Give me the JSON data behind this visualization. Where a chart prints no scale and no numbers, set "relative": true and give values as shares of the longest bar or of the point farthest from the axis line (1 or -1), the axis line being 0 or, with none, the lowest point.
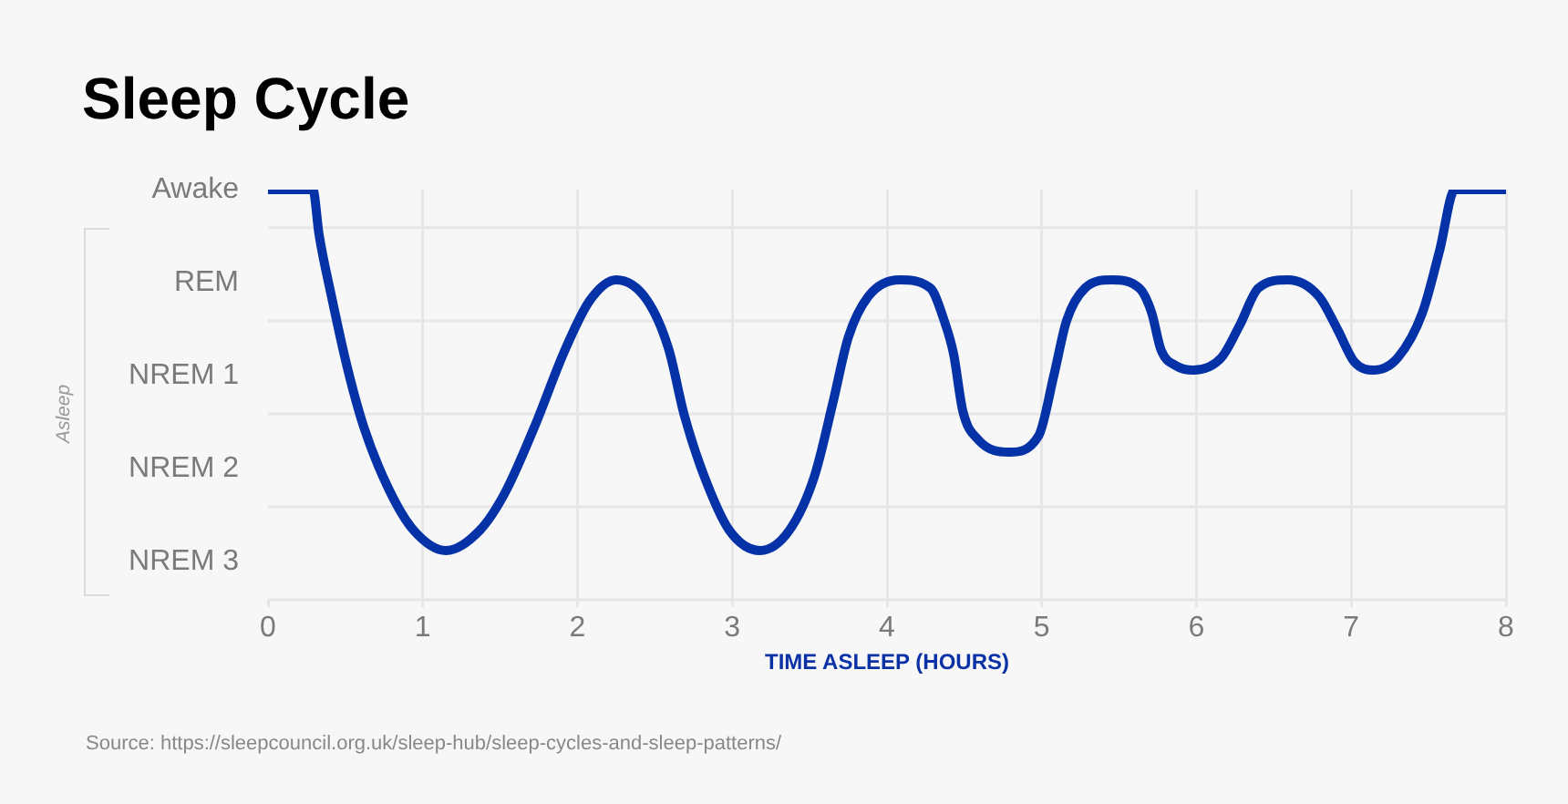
{
  "chart_data": {
    "type": "line",
    "title": "Sleep Cycle",
    "xlabel": "TIME ASLEEP (HOURS)",
    "relative": true,
    "annotations": [
      "Awake",
      "REM",
      "NREM 1",
      "NREM 2",
      "NREM 3",
      "Asleep",
      "Source: https://sleepcouncil.org.uk/sleep-hub/sleep-cycles-and-sleep-patterns/"
    ],
    "x": [
      0,
      0.29,
      0.33,
      0.41,
      0.51,
      0.62,
      0.78,
      0.94,
      1.15,
      1.37,
      1.53,
      1.72,
      1.92,
      2.08,
      2.25,
      2.45,
      2.59,
      2.69,
      2.82,
      2.98,
      3.18,
      3.37,
      3.53,
      3.65,
      3.75,
      3.88,
      4.08,
      4.28,
      4.37,
      4.43,
      4.49,
      4.59,
      4.79,
      4.98,
      5.08,
      5.16,
      5.28,
      5.45,
      5.63,
      5.71,
      5.77,
      5.87,
      5.98,
      6.16,
      6.28,
      6.4,
      6.59,
      6.79,
      6.91,
      7.02,
      7.15,
      7.3,
      7.46,
      7.57,
      7.67,
      8
    ],
    "series": [
      {
        "color": "#0532a6",
        "values": [
          1,
          1,
          0.89,
          0.74,
          0.57,
          0.42,
          0.27,
          0.17,
          0.12,
          0.17,
          0.26,
          0.42,
          0.61,
          0.73,
          0.78,
          0.73,
          0.61,
          0.45,
          0.3,
          0.17,
          0.12,
          0.17,
          0.3,
          0.48,
          0.64,
          0.74,
          0.78,
          0.76,
          0.68,
          0.6,
          0.46,
          0.39,
          0.36,
          0.4,
          0.55,
          0.68,
          0.76,
          0.78,
          0.76,
          0.7,
          0.61,
          0.57,
          0.56,
          0.59,
          0.67,
          0.76,
          0.78,
          0.74,
          0.66,
          0.58,
          0.56,
          0.59,
          0.7,
          0.85,
          1,
          1
        ]
      }
    ],
    "xlim": [
      0,
      8
    ],
    "xticks": [
      0,
      1,
      2,
      3,
      4,
      5,
      6,
      7,
      8
    ],
    "grid": true,
    "marker": "none"
  }
}
